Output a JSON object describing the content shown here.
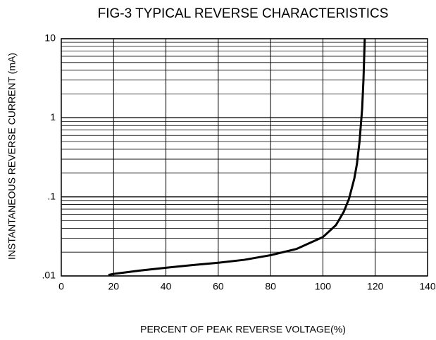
{
  "chart_data": {
    "type": "line",
    "title": "FIG-3 TYPICAL REVERSE CHARACTERISTICS",
    "xlabel": "PERCENT OF PEAK REVERSE VOLTAGE(%)",
    "ylabel": "INSTANTANEOUS REVERSE CURRENT (mA)",
    "yscale": "log",
    "grid": true,
    "minor_grid": true,
    "xlim": [
      0,
      140
    ],
    "xticks": [
      0,
      20,
      40,
      60,
      80,
      100,
      120,
      140
    ],
    "ylim": [
      0.01,
      10
    ],
    "yticks": [
      {
        "value": 0.01,
        "label": ".01"
      },
      {
        "value": 0.1,
        "label": ".1"
      },
      1,
      10
    ],
    "x": [
      18,
      20,
      30,
      40,
      50,
      60,
      70,
      80,
      90,
      100,
      105,
      108,
      110,
      112,
      113,
      114,
      115,
      115.5,
      116
    ],
    "series": [
      {
        "name": null,
        "color": "#000000",
        "values": [
          0.0103,
          0.0106,
          0.0117,
          0.0127,
          0.0137,
          0.0147,
          0.016,
          0.0183,
          0.022,
          0.031,
          0.044,
          0.065,
          0.095,
          0.17,
          0.26,
          0.5,
          1.3,
          3,
          10
        ]
      }
    ]
  }
}
